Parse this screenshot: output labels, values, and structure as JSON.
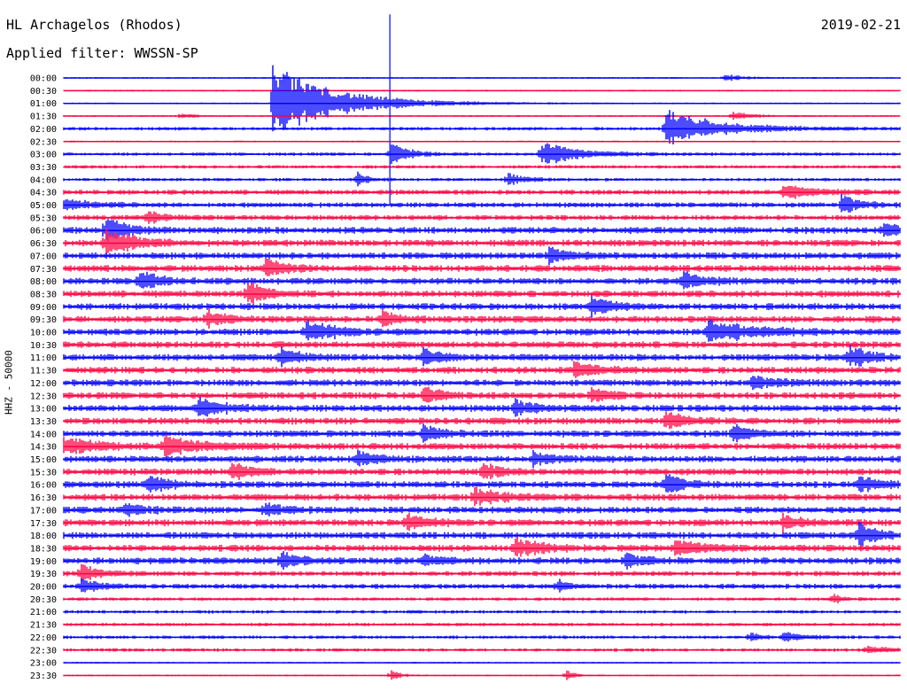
{
  "header": {
    "station": "HL Archagelos (Rhodos)",
    "filter": "Applied filter: WWSSN-SP",
    "date": "2019-02-21",
    "channel": "HHZ - 50000"
  },
  "colors": {
    "trace_a": "#0000ff",
    "trace_b": "#ff0040"
  },
  "chart_data": {
    "type": "line",
    "title": "HL Archagelos (Rhodos)",
    "subtitle": "Applied filter: WWSSN-SP",
    "ylabel": "HHZ - 50000",
    "xlabel": "",
    "grid": false,
    "row_labels": [
      "00:00",
      "00:30",
      "01:00",
      "01:30",
      "02:00",
      "02:30",
      "03:00",
      "03:30",
      "04:00",
      "04:30",
      "05:00",
      "05:30",
      "06:00",
      "06:30",
      "07:00",
      "07:30",
      "08:00",
      "08:30",
      "09:00",
      "09:30",
      "10:00",
      "10:30",
      "11:00",
      "11:30",
      "12:00",
      "12:30",
      "13:00",
      "13:30",
      "14:00",
      "14:30",
      "15:00",
      "15:30",
      "16:00",
      "16:30",
      "17:00",
      "17:30",
      "18:00",
      "18:30",
      "19:00",
      "19:30",
      "20:00",
      "20:30",
      "21:00",
      "21:30",
      "22:00",
      "22:30",
      "23:00",
      "23:30"
    ],
    "series": [
      {
        "color": "#0000ff",
        "rows": "even (00:00, 01:00, ... 23:00)"
      },
      {
        "color": "#ff0040",
        "rows": "odd (00:30, 01:30, ... 23:30)"
      }
    ],
    "noise_level": [
      1,
      1,
      1,
      1,
      2,
      1,
      2,
      2,
      2,
      3,
      3,
      3,
      4,
      4,
      4,
      4,
      4,
      4,
      4,
      4,
      4,
      4,
      4,
      4,
      4,
      4,
      4,
      4,
      4,
      4,
      4,
      4,
      4,
      4,
      4,
      4,
      4,
      4,
      4,
      3,
      3,
      2,
      2,
      2,
      2,
      2,
      1,
      1
    ],
    "events": [
      {
        "row": 2,
        "x": 0.25,
        "amp": 45,
        "dur": 0.07
      },
      {
        "row": 4,
        "x": 0.72,
        "amp": 22,
        "dur": 0.06
      },
      {
        "row": 6,
        "x": 0.39,
        "amp": 16,
        "dur": 0.02
      },
      {
        "row": 6,
        "x": 0.57,
        "amp": 14,
        "dur": 0.04
      },
      {
        "row": 0,
        "x": 0.79,
        "amp": 5,
        "dur": 0.02
      },
      {
        "row": 3,
        "x": 0.14,
        "amp": 5,
        "dur": 0.01
      },
      {
        "row": 3,
        "x": 0.8,
        "amp": 6,
        "dur": 0.02
      },
      {
        "row": 8,
        "x": 0.35,
        "amp": 9,
        "dur": 0.01
      },
      {
        "row": 8,
        "x": 0.53,
        "amp": 7,
        "dur": 0.02
      },
      {
        "row": 9,
        "x": 0.86,
        "amp": 8,
        "dur": 0.04
      },
      {
        "row": 10,
        "x": 0.0,
        "amp": 7,
        "dur": 0.03
      },
      {
        "row": 10,
        "x": 0.93,
        "amp": 11,
        "dur": 0.02
      },
      {
        "row": 11,
        "x": 0.1,
        "amp": 8,
        "dur": 0.02
      },
      {
        "row": 12,
        "x": 0.05,
        "amp": 20,
        "dur": 0.02
      },
      {
        "row": 12,
        "x": 0.98,
        "amp": 9,
        "dur": 0.02
      },
      {
        "row": 13,
        "x": 0.05,
        "amp": 18,
        "dur": 0.03
      },
      {
        "row": 14,
        "x": 0.58,
        "amp": 10,
        "dur": 0.02
      },
      {
        "row": 15,
        "x": 0.24,
        "amp": 12,
        "dur": 0.02
      },
      {
        "row": 16,
        "x": 0.09,
        "amp": 14,
        "dur": 0.02
      },
      {
        "row": 16,
        "x": 0.74,
        "amp": 12,
        "dur": 0.02
      },
      {
        "row": 17,
        "x": 0.22,
        "amp": 14,
        "dur": 0.02
      },
      {
        "row": 18,
        "x": 0.63,
        "amp": 13,
        "dur": 0.02
      },
      {
        "row": 19,
        "x": 0.17,
        "amp": 10,
        "dur": 0.02
      },
      {
        "row": 19,
        "x": 0.38,
        "amp": 9,
        "dur": 0.02
      },
      {
        "row": 20,
        "x": 0.29,
        "amp": 13,
        "dur": 0.03
      },
      {
        "row": 20,
        "x": 0.77,
        "amp": 14,
        "dur": 0.05
      },
      {
        "row": 22,
        "x": 0.26,
        "amp": 11,
        "dur": 0.02
      },
      {
        "row": 22,
        "x": 0.43,
        "amp": 10,
        "dur": 0.02
      },
      {
        "row": 22,
        "x": 0.94,
        "amp": 14,
        "dur": 0.02
      },
      {
        "row": 23,
        "x": 0.61,
        "amp": 8,
        "dur": 0.03
      },
      {
        "row": 24,
        "x": 0.82,
        "amp": 7,
        "dur": 0.03
      },
      {
        "row": 25,
        "x": 0.43,
        "amp": 10,
        "dur": 0.02
      },
      {
        "row": 25,
        "x": 0.63,
        "amp": 10,
        "dur": 0.02
      },
      {
        "row": 26,
        "x": 0.16,
        "amp": 11,
        "dur": 0.03
      },
      {
        "row": 26,
        "x": 0.54,
        "amp": 9,
        "dur": 0.02
      },
      {
        "row": 27,
        "x": 0.72,
        "amp": 12,
        "dur": 0.02
      },
      {
        "row": 28,
        "x": 0.43,
        "amp": 10,
        "dur": 0.02
      },
      {
        "row": 28,
        "x": 0.8,
        "amp": 10,
        "dur": 0.02
      },
      {
        "row": 29,
        "x": 0.0,
        "amp": 10,
        "dur": 0.04
      },
      {
        "row": 29,
        "x": 0.12,
        "amp": 12,
        "dur": 0.04
      },
      {
        "row": 30,
        "x": 0.35,
        "amp": 9,
        "dur": 0.02
      },
      {
        "row": 30,
        "x": 0.56,
        "amp": 9,
        "dur": 0.02
      },
      {
        "row": 31,
        "x": 0.2,
        "amp": 10,
        "dur": 0.02
      },
      {
        "row": 31,
        "x": 0.5,
        "amp": 10,
        "dur": 0.02
      },
      {
        "row": 32,
        "x": 0.1,
        "amp": 11,
        "dur": 0.02
      },
      {
        "row": 32,
        "x": 0.72,
        "amp": 12,
        "dur": 0.02
      },
      {
        "row": 32,
        "x": 0.95,
        "amp": 10,
        "dur": 0.02
      },
      {
        "row": 33,
        "x": 0.49,
        "amp": 10,
        "dur": 0.03
      },
      {
        "row": 34,
        "x": 0.07,
        "amp": 8,
        "dur": 0.02
      },
      {
        "row": 34,
        "x": 0.24,
        "amp": 8,
        "dur": 0.02
      },
      {
        "row": 35,
        "x": 0.41,
        "amp": 12,
        "dur": 0.02
      },
      {
        "row": 35,
        "x": 0.86,
        "amp": 10,
        "dur": 0.02
      },
      {
        "row": 36,
        "x": 0.95,
        "amp": 15,
        "dur": 0.02
      },
      {
        "row": 37,
        "x": 0.54,
        "amp": 11,
        "dur": 0.03
      },
      {
        "row": 37,
        "x": 0.73,
        "amp": 10,
        "dur": 0.03
      },
      {
        "row": 38,
        "x": 0.26,
        "amp": 10,
        "dur": 0.02
      },
      {
        "row": 38,
        "x": 0.43,
        "amp": 8,
        "dur": 0.02
      },
      {
        "row": 38,
        "x": 0.67,
        "amp": 10,
        "dur": 0.02
      },
      {
        "row": 39,
        "x": 0.02,
        "amp": 12,
        "dur": 0.02
      },
      {
        "row": 40,
        "x": 0.02,
        "amp": 9,
        "dur": 0.02
      },
      {
        "row": 40,
        "x": 0.59,
        "amp": 8,
        "dur": 0.01
      },
      {
        "row": 41,
        "x": 0.92,
        "amp": 7,
        "dur": 0.01
      },
      {
        "row": 44,
        "x": 0.82,
        "amp": 7,
        "dur": 0.01
      },
      {
        "row": 44,
        "x": 0.86,
        "amp": 7,
        "dur": 0.02
      },
      {
        "row": 45,
        "x": 0.96,
        "amp": 6,
        "dur": 0.02
      },
      {
        "row": 47,
        "x": 0.39,
        "amp": 8,
        "dur": 0.01
      },
      {
        "row": 47,
        "x": 0.6,
        "amp": 7,
        "dur": 0.01
      }
    ],
    "spike": {
      "x": 0.39,
      "from_row": -5,
      "to_row": 10
    }
  }
}
